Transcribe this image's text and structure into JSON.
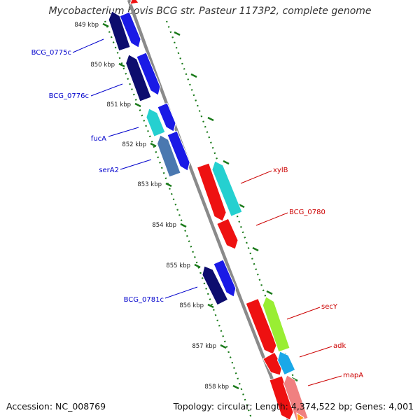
{
  "title": "Mycobacterium bovis BCG str. Pasteur 1173P2, complete genome",
  "accession": "Accession: NC_008769",
  "summary": "Topology: circular; Length: 4,374,522 bp; Genes: 4,001",
  "colors": {
    "backbone": "#8a8a8a",
    "tick_line": "#1a7a1a",
    "left_label": "#0000cc",
    "right_label": "#cc0000",
    "navy": "#0d0d6e",
    "blue": "#1a1ae6",
    "cyan": "#25d0d0",
    "steel": "#4a78b0",
    "red": "#ee1111",
    "lime": "#99ee33",
    "sky": "#1aa8e8",
    "pink": "#f08080",
    "orange": "#ff9a1a"
  },
  "ticks": [
    {
      "label": "849 kbp"
    },
    {
      "label": "850 kbp"
    },
    {
      "label": "851 kbp"
    },
    {
      "label": "852 kbp"
    },
    {
      "label": "853 kbp"
    },
    {
      "label": "854 kbp"
    },
    {
      "label": "855 kbp"
    },
    {
      "label": "856 kbp"
    },
    {
      "label": "857 kbp"
    },
    {
      "label": "858 kbp"
    }
  ],
  "gene_labels_left": [
    {
      "name": "BCG_0775c"
    },
    {
      "name": "BCG_0776c"
    },
    {
      "name": "fucA"
    },
    {
      "name": "serA2"
    },
    {
      "name": "BCG_0781c"
    }
  ],
  "gene_labels_right": [
    {
      "name": "xylB"
    },
    {
      "name": "BCG_0780"
    },
    {
      "name": "secY"
    },
    {
      "name": "adk"
    },
    {
      "name": "mapA"
    }
  ]
}
